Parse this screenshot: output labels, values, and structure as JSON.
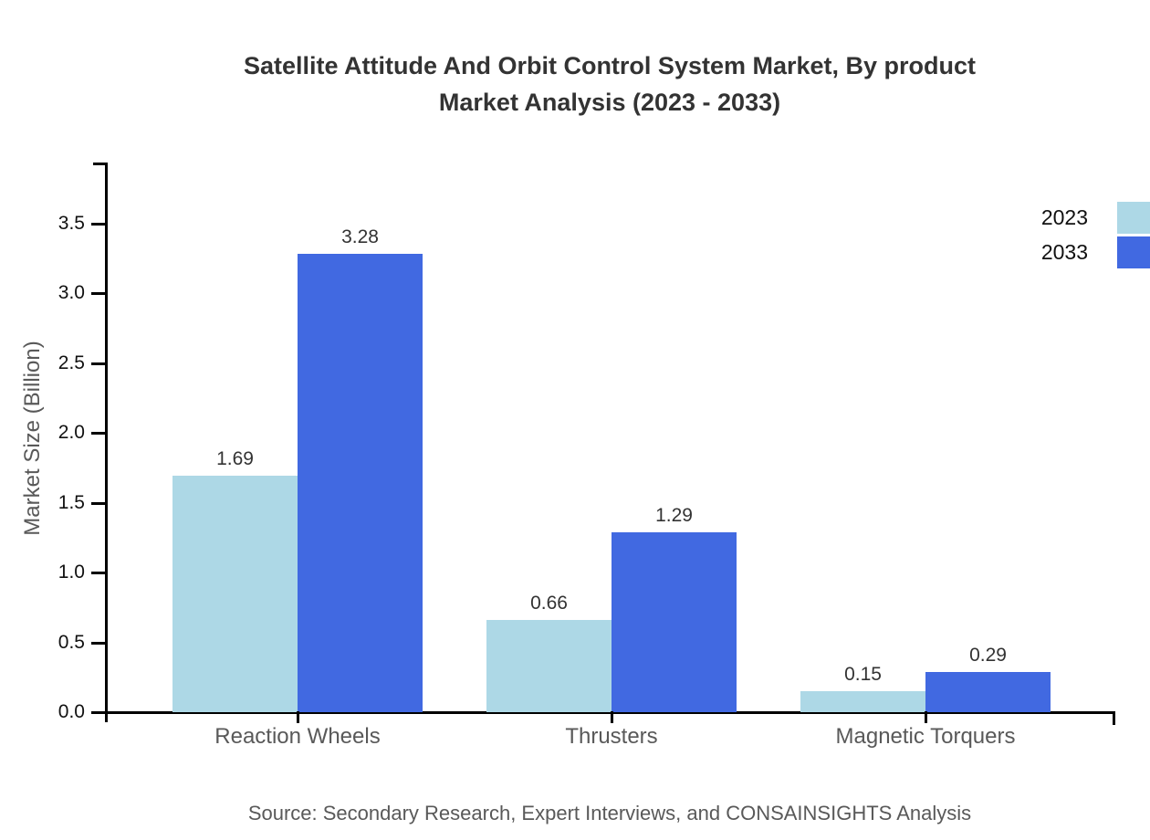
{
  "chart_data": {
    "type": "bar",
    "title": "Satellite Attitude And Orbit Control System Market, By product Market Analysis (2023 - 2033)",
    "title_lines": [
      "Satellite Attitude And Orbit Control System Market, By product",
      "Market Analysis (2023 - 2033)"
    ],
    "categories": [
      "Reaction Wheels",
      "Thrusters",
      "Magnetic Torquers"
    ],
    "series": [
      {
        "name": "2023",
        "color": "#ADD8E6",
        "values": [
          1.69,
          0.66,
          0.15
        ]
      },
      {
        "name": "2033",
        "color": "#4169E1",
        "values": [
          3.28,
          1.29,
          0.29
        ]
      }
    ],
    "ylabel": "Market Size (Billion)",
    "xlabel": "",
    "ytick_labels": [
      "0.0",
      "0.5",
      "1.0",
      "1.5",
      "2.0",
      "2.5",
      "3.0",
      "3.5"
    ],
    "ylim": [
      0.0,
      3.9
    ],
    "grid": false,
    "bar_value_labels": true,
    "legend": {
      "position": "top-right",
      "entries": [
        "2023",
        "2033"
      ]
    },
    "source": "Source: Secondary Research, Expert Interviews, and CONSAINSIGHTS Analysis"
  },
  "colors": {
    "background": "#FFFFFF",
    "series_2023": "#ADD8E6",
    "series_2033": "#4169E1",
    "axis_line": "#000000",
    "tick_text": "#111111",
    "value_text": "#333333",
    "muted_text": "#595959",
    "title_text": "#333333"
  }
}
